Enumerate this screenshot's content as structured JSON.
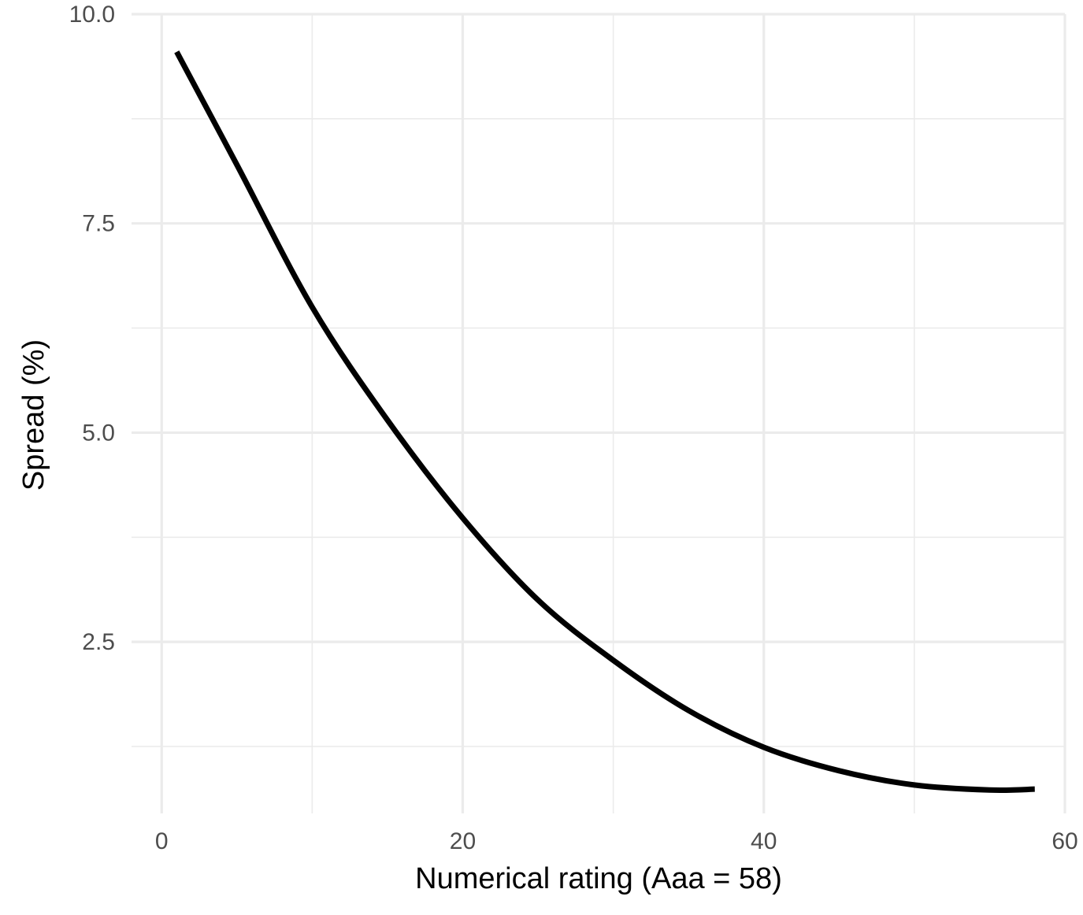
{
  "chart_data": {
    "type": "line",
    "xlabel": "Numerical rating (Aaa = 58)",
    "ylabel": "Spread (%)",
    "xlim": [
      -2,
      60
    ],
    "ylim": [
      0.45,
      10.0
    ],
    "x_ticks": [
      0,
      20,
      40,
      60
    ],
    "x_tick_labels": [
      "0",
      "20",
      "40",
      "60"
    ],
    "y_ticks": [
      2.5,
      5.0,
      7.5,
      10.0
    ],
    "y_tick_labels": [
      "2.5",
      "5.0",
      "7.5",
      "10.0"
    ],
    "x_minor_ticks": [
      10,
      30,
      50
    ],
    "y_minor_ticks": [
      1.25,
      3.75,
      6.25,
      8.75
    ],
    "grid": true,
    "line_color": "#000000",
    "series": [
      {
        "x": [
          1,
          5,
          10,
          15,
          20,
          25,
          30,
          35,
          40,
          45,
          50,
          55,
          58
        ],
        "y": [
          9.55,
          8.2,
          6.5,
          5.15,
          3.98,
          3.0,
          2.28,
          1.68,
          1.24,
          0.96,
          0.79,
          0.73,
          0.74
        ]
      }
    ]
  }
}
